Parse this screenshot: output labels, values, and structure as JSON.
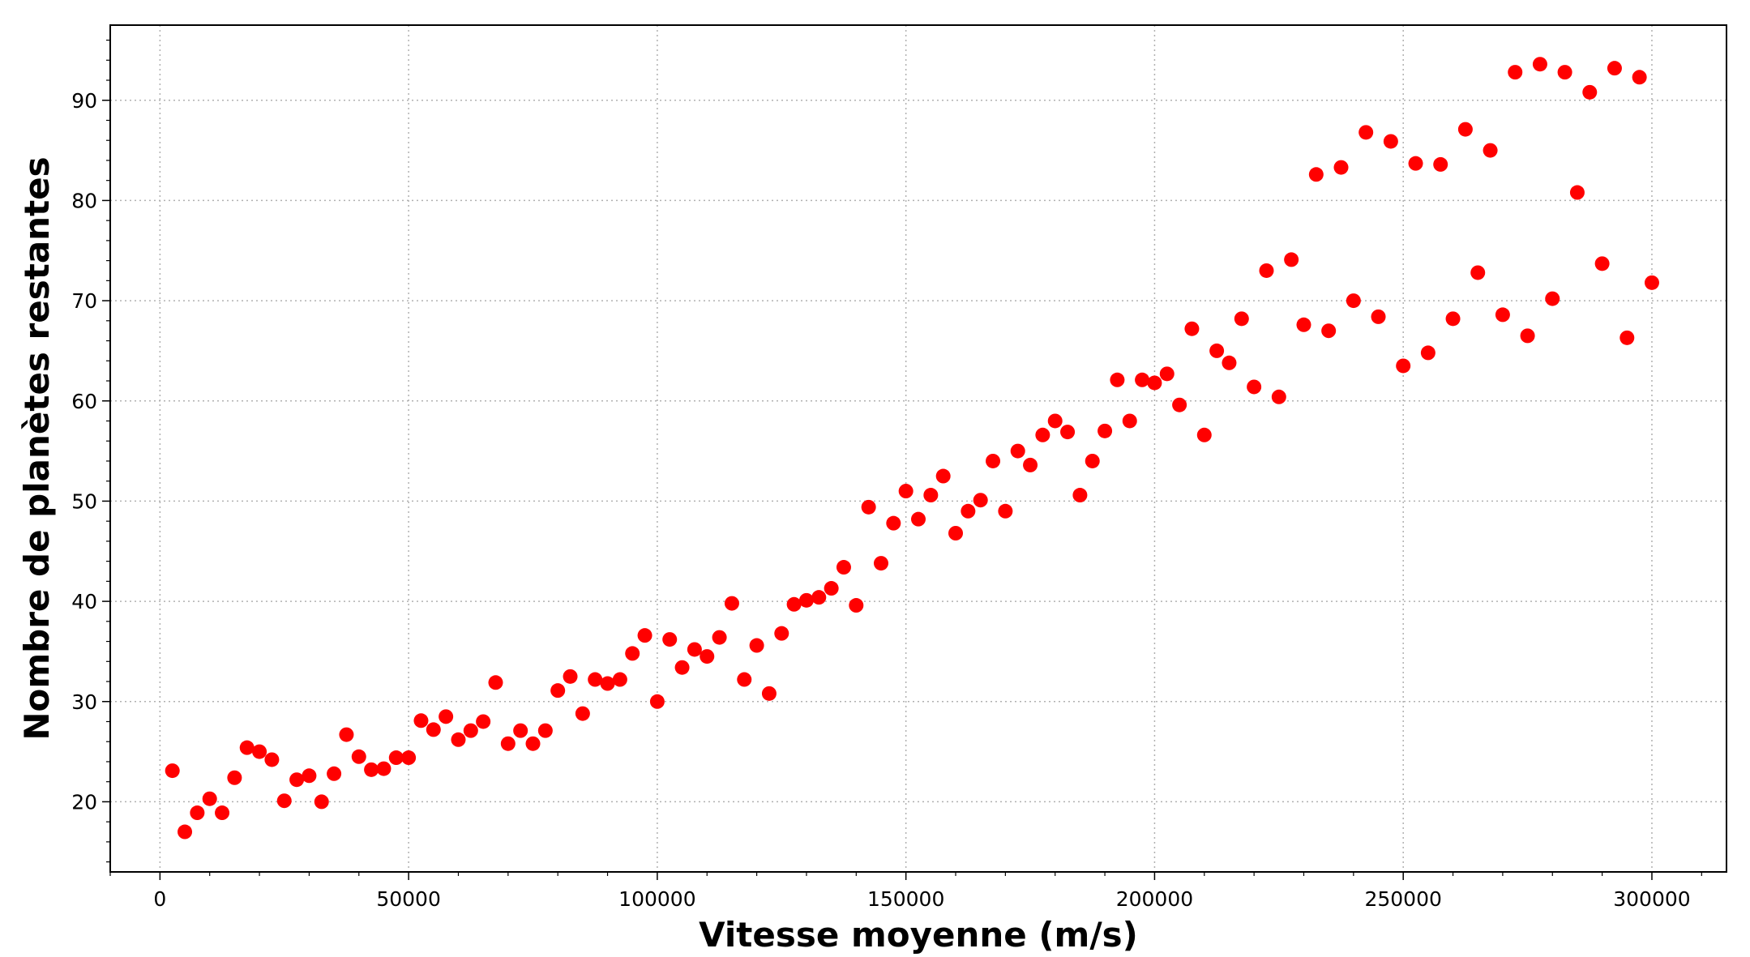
{
  "chart_data": {
    "type": "scatter",
    "title": "",
    "xlabel": "Vitesse moyenne (m/s)",
    "ylabel": "Nombre de planètes restantes",
    "xlim": [
      -10000,
      315000
    ],
    "ylim": [
      13,
      97.5
    ],
    "grid": true,
    "marker_color": "#ff0000",
    "x_ticks": [
      0,
      50000,
      100000,
      150000,
      200000,
      250000,
      300000
    ],
    "x_tick_labels": [
      "0",
      "50000",
      "100000",
      "150000",
      "200000",
      "250000",
      "300000"
    ],
    "y_ticks": [
      20,
      30,
      40,
      50,
      60,
      70,
      80,
      90
    ],
    "y_tick_labels": [
      "20",
      "30",
      "40",
      "50",
      "60",
      "70",
      "80",
      "90"
    ],
    "series": [
      {
        "points": [
          [
            2500,
            23.1
          ],
          [
            5000,
            17.0
          ],
          [
            7500,
            18.9
          ],
          [
            10000,
            20.3
          ],
          [
            12500,
            18.9
          ],
          [
            15000,
            22.4
          ],
          [
            17500,
            25.4
          ],
          [
            20000,
            25.0
          ],
          [
            22500,
            24.2
          ],
          [
            25000,
            20.1
          ],
          [
            27500,
            22.2
          ],
          [
            30000,
            22.6
          ],
          [
            32500,
            20.0
          ],
          [
            35000,
            22.8
          ],
          [
            37500,
            26.7
          ],
          [
            40000,
            24.5
          ],
          [
            42500,
            23.2
          ],
          [
            45000,
            23.3
          ],
          [
            47500,
            24.4
          ],
          [
            50000,
            24.4
          ],
          [
            52500,
            28.1
          ],
          [
            55000,
            27.2
          ],
          [
            57500,
            28.5
          ],
          [
            60000,
            26.2
          ],
          [
            62500,
            27.1
          ],
          [
            65000,
            28.0
          ],
          [
            67500,
            31.9
          ],
          [
            70000,
            25.8
          ],
          [
            72500,
            27.1
          ],
          [
            75000,
            25.8
          ],
          [
            77500,
            27.1
          ],
          [
            80000,
            31.1
          ],
          [
            82500,
            32.5
          ],
          [
            85000,
            28.8
          ],
          [
            87500,
            32.2
          ],
          [
            90000,
            31.8
          ],
          [
            92500,
            32.2
          ],
          [
            95000,
            34.8
          ],
          [
            97500,
            36.6
          ],
          [
            100000,
            30.0
          ],
          [
            102500,
            36.2
          ],
          [
            105000,
            33.4
          ],
          [
            107500,
            35.2
          ],
          [
            110000,
            34.5
          ],
          [
            112500,
            36.4
          ],
          [
            115000,
            39.8
          ],
          [
            117500,
            32.2
          ],
          [
            120000,
            35.6
          ],
          [
            122500,
            30.8
          ],
          [
            125000,
            36.8
          ],
          [
            127500,
            39.7
          ],
          [
            130000,
            40.1
          ],
          [
            132500,
            40.4
          ],
          [
            135000,
            41.3
          ],
          [
            137500,
            43.4
          ],
          [
            140000,
            39.6
          ],
          [
            142500,
            49.4
          ],
          [
            145000,
            43.8
          ],
          [
            147500,
            47.8
          ],
          [
            150000,
            51.0
          ],
          [
            152500,
            48.2
          ],
          [
            155000,
            50.6
          ],
          [
            157500,
            52.5
          ],
          [
            160000,
            46.8
          ],
          [
            162500,
            49.0
          ],
          [
            165000,
            50.1
          ],
          [
            167500,
            54.0
          ],
          [
            170000,
            49.0
          ],
          [
            172500,
            55.0
          ],
          [
            175000,
            53.6
          ],
          [
            177500,
            56.6
          ],
          [
            180000,
            58.0
          ],
          [
            182500,
            56.9
          ],
          [
            185000,
            50.6
          ],
          [
            187500,
            54.0
          ],
          [
            190000,
            57.0
          ],
          [
            192500,
            62.1
          ],
          [
            195000,
            58.0
          ],
          [
            197500,
            62.1
          ],
          [
            200000,
            61.8
          ],
          [
            202500,
            62.7
          ],
          [
            205000,
            59.6
          ],
          [
            207500,
            67.2
          ],
          [
            210000,
            56.6
          ],
          [
            212500,
            65.0
          ],
          [
            215000,
            63.8
          ],
          [
            217500,
            68.2
          ],
          [
            220000,
            61.4
          ],
          [
            222500,
            73.0
          ],
          [
            225000,
            60.4
          ],
          [
            227500,
            74.1
          ],
          [
            230000,
            67.6
          ],
          [
            232500,
            82.6
          ],
          [
            235000,
            67.0
          ],
          [
            237500,
            83.3
          ],
          [
            240000,
            70.0
          ],
          [
            242500,
            86.8
          ],
          [
            245000,
            68.4
          ],
          [
            247500,
            85.9
          ],
          [
            250000,
            63.5
          ],
          [
            252500,
            83.7
          ],
          [
            255000,
            64.8
          ],
          [
            257500,
            83.6
          ],
          [
            260000,
            68.2
          ],
          [
            262500,
            87.1
          ],
          [
            265000,
            72.8
          ],
          [
            267500,
            85.0
          ],
          [
            270000,
            68.6
          ],
          [
            272500,
            92.8
          ],
          [
            275000,
            66.5
          ],
          [
            277500,
            93.6
          ],
          [
            280000,
            70.2
          ],
          [
            282500,
            92.8
          ],
          [
            285000,
            80.8
          ],
          [
            287500,
            90.8
          ],
          [
            290000,
            73.7
          ],
          [
            292500,
            93.2
          ],
          [
            295000,
            66.3
          ],
          [
            297500,
            92.3
          ],
          [
            300000,
            71.8
          ]
        ]
      }
    ]
  }
}
